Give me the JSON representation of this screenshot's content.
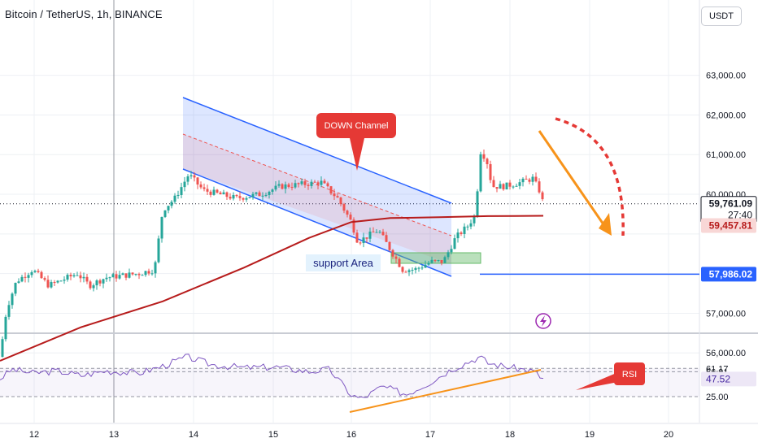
{
  "header": {
    "title": "Bitcoin / TetherUS, 1h, BINANCE",
    "currency_button": "USDT"
  },
  "chart_data": [
    {
      "type": "line",
      "subtype": "candlestick",
      "ylim": [
        55800,
        63600
      ],
      "y_ticks": [
        "63,000.00",
        "62,000.00",
        "61,000.00",
        "60,000.00",
        "57,000.00",
        "56,000.00"
      ],
      "x_ticks": [
        "12",
        "13",
        "14",
        "15",
        "16",
        "17",
        "18",
        "19",
        "20"
      ],
      "price_tags": {
        "last_price": "59,761.09",
        "countdown": "27:40",
        "moving_average": "59,457.81",
        "target_level": "57,986.02"
      },
      "annotations": {
        "down_channel_label": "DOWN Channel",
        "support_label": "support Area"
      },
      "colors": {
        "up": "#26a69a",
        "down": "#ef5350",
        "moving_average": "#b71c1c",
        "channel": "#2962ff",
        "projection": "#f7931a",
        "curve": "#e53935",
        "support_zone": "#66bb6a"
      }
    },
    {
      "type": "line",
      "name": "RSI",
      "ylim": [
        0,
        100
      ],
      "levels": [
        "61.17",
        "56.91",
        "25.00"
      ],
      "current_value": "47.52",
      "annotation": "RSI",
      "colors": {
        "line": "#7e57c2",
        "trend": "#f7931a",
        "tag": "#e53935"
      }
    }
  ]
}
